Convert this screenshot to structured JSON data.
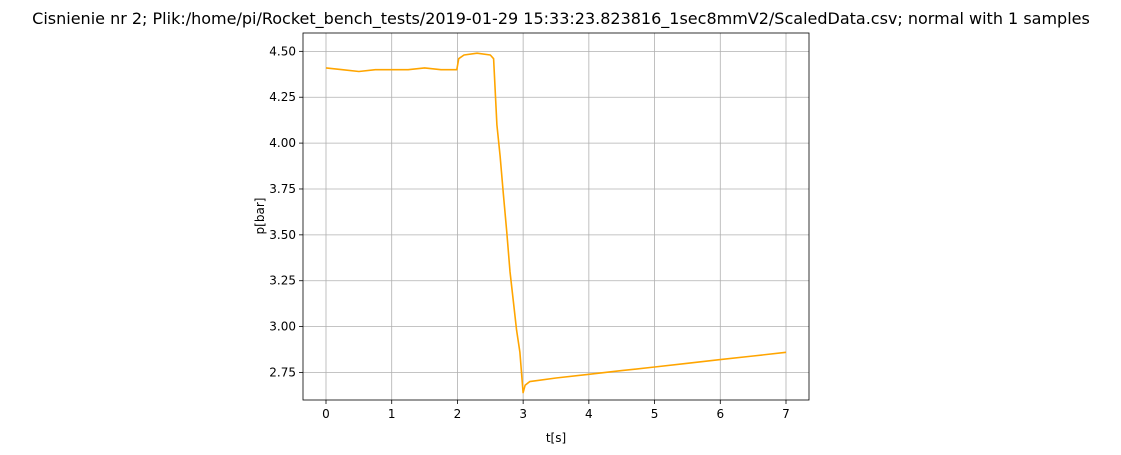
{
  "chart_data": {
    "type": "line",
    "title": "Cisnienie nr 2; Plik:/home/pi/Rocket_bench_tests/2019-01-29 15:33:23.823816_1sec8mmV2/ScaledData.csv; normal with 1 samples",
    "xlabel": "t[s]",
    "ylabel": "p[bar]",
    "xlim": [
      -0.35,
      7.35
    ],
    "ylim": [
      2.6,
      4.6
    ],
    "xticks": [
      0,
      1,
      2,
      3,
      4,
      5,
      6,
      7
    ],
    "yticks": [
      2.75,
      3.0,
      3.25,
      3.5,
      3.75,
      4.0,
      4.25,
      4.5
    ],
    "ytick_labels": [
      "2.75",
      "3.00",
      "3.25",
      "3.50",
      "3.75",
      "4.00",
      "4.25",
      "4.50"
    ],
    "xtick_labels": [
      "0",
      "1",
      "2",
      "3",
      "4",
      "5",
      "6",
      "7"
    ],
    "grid": true,
    "color": "#ffa500",
    "series": [
      {
        "x": [
          0,
          0.25,
          0.5,
          0.75,
          1.0,
          1.25,
          1.5,
          1.75,
          1.99,
          2.02,
          2.1,
          2.3,
          2.5,
          2.55,
          2.6,
          2.65,
          2.7,
          2.75,
          2.8,
          2.85,
          2.9,
          2.95,
          3.0,
          3.03,
          3.1,
          3.5,
          4.0,
          4.5,
          5.0,
          5.5,
          6.0,
          6.5,
          7.0
        ],
        "y": [
          4.41,
          4.4,
          4.39,
          4.4,
          4.4,
          4.4,
          4.41,
          4.4,
          4.4,
          4.46,
          4.48,
          4.49,
          4.48,
          4.46,
          4.1,
          3.93,
          3.72,
          3.52,
          3.3,
          3.14,
          2.98,
          2.86,
          2.64,
          2.68,
          2.7,
          2.72,
          2.74,
          2.76,
          2.78,
          2.8,
          2.82,
          2.84,
          2.86
        ]
      }
    ]
  }
}
